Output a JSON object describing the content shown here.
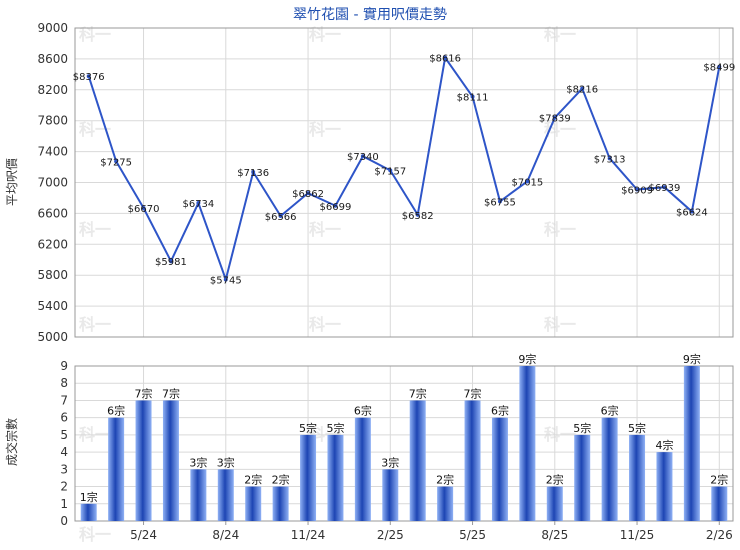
{
  "title": "翠竹花園 - 實用呎價走勢",
  "colors": {
    "line": "#2e55c8",
    "bar_light": "#8fb1f5",
    "bar_dark": "#1d45b3",
    "grid": "#d9d9d9",
    "axis": "#333333"
  },
  "chart_data": [
    {
      "type": "line",
      "ylabel": "平均呎價",
      "ylim": [
        5000,
        9000
      ],
      "yticks": [
        5000,
        5400,
        5800,
        6200,
        6600,
        7000,
        7400,
        7800,
        8200,
        8600,
        9000
      ],
      "point_labels": [
        "$8376",
        "$7275",
        "$6670",
        "$5981",
        "$6734",
        "$5745",
        "$7136",
        "$6566",
        "$6862",
        "$6699",
        "$7340",
        "$7157",
        "$6582",
        "$8616",
        "$8111",
        "$6755",
        "$7015",
        "$7839",
        "$8216",
        "$7313",
        "$6909",
        "$6939",
        "$6624",
        "$8499"
      ],
      "values": [
        8376,
        7275,
        6670,
        5981,
        6734,
        5745,
        7136,
        6566,
        6862,
        6699,
        7340,
        7157,
        6582,
        8616,
        8111,
        6755,
        7015,
        7839,
        8216,
        7313,
        6909,
        6939,
        6624,
        8499
      ],
      "grid": true
    },
    {
      "type": "bar",
      "ylabel": "成交宗數",
      "ylim": [
        0,
        9
      ],
      "yticks": [
        0,
        1,
        2,
        3,
        4,
        5,
        6,
        7,
        8,
        9
      ],
      "values": [
        1,
        6,
        7,
        7,
        3,
        3,
        2,
        2,
        5,
        5,
        6,
        3,
        7,
        2,
        7,
        6,
        9,
        2,
        5,
        6,
        5,
        4,
        9,
        2
      ],
      "bar_labels": [
        "1宗",
        "6宗",
        "7宗",
        "7宗",
        "3宗",
        "3宗",
        "2宗",
        "2宗",
        "5宗",
        "5宗",
        "6宗",
        "3宗",
        "7宗",
        "2宗",
        "7宗",
        "6宗",
        "9宗",
        "2宗",
        "5宗",
        "6宗",
        "5宗",
        "4宗",
        "9宗",
        "2宗"
      ],
      "x_tick_labels": [
        "5/24",
        "8/24",
        "11/24",
        "2/25",
        "5/25",
        "8/25",
        "11/25",
        "2/26"
      ],
      "grid": true
    }
  ],
  "watermarks": [
    "科一",
    "科一",
    "科一",
    "科一",
    "科一",
    "科一",
    "科一",
    "科一",
    "科一",
    "科一",
    "科一",
    "科一",
    "科一",
    "科一",
    "科一",
    "科一"
  ]
}
